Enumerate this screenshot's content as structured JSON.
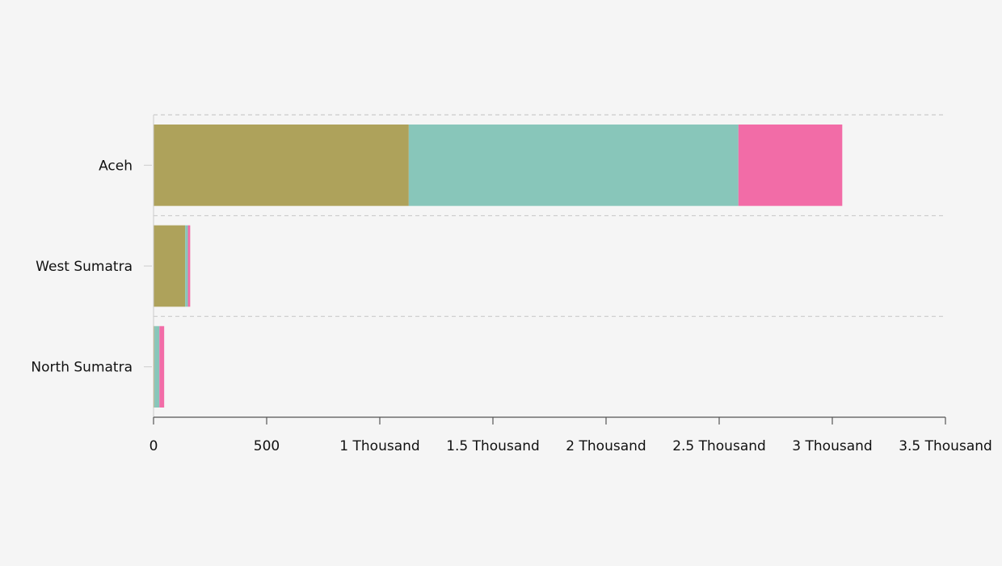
{
  "chart_data": {
    "type": "bar",
    "orientation": "horizontal",
    "stacked": true,
    "title": "",
    "xlabel": "",
    "ylabel": "",
    "categories": [
      "Aceh",
      "West Sumatra",
      "North Sumatra"
    ],
    "series": [
      {
        "color": "#aea25b",
        "values": [
          1128,
          140,
          4
        ]
      },
      {
        "color": "#88c6ba",
        "values": [
          1457,
          12,
          22
        ]
      },
      {
        "color": "#f26ca7",
        "values": [
          459,
          10,
          21
        ]
      }
    ],
    "xlim": [
      0,
      3500
    ],
    "x_ticks": [
      {
        "value": 0,
        "label": "0"
      },
      {
        "value": 500,
        "label": "500"
      },
      {
        "value": 1000,
        "label": "1 Thousand"
      },
      {
        "value": 1500,
        "label": "1.5 Thousand"
      },
      {
        "value": 2000,
        "label": "2 Thousand"
      },
      {
        "value": 2500,
        "label": "2.5 Thousand"
      },
      {
        "value": 3000,
        "label": "3 Thousand"
      },
      {
        "value": 3500,
        "label": "3.5 Thousand"
      }
    ],
    "grid": "horizontal-dashed",
    "legend": "none"
  },
  "colors": {
    "background": "#f5f5f5",
    "axis": "#555555",
    "grid": "#cccccc",
    "text": "#111111"
  }
}
